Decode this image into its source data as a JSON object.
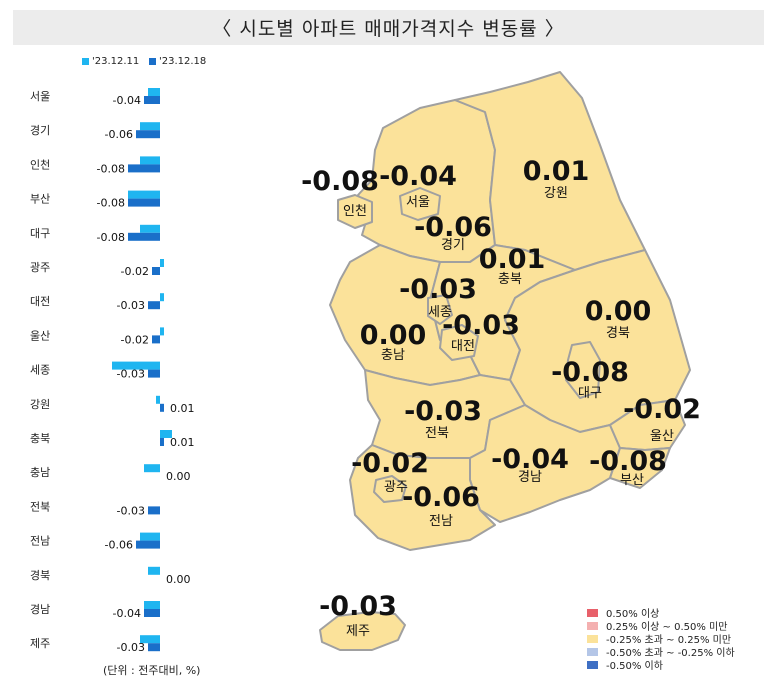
{
  "title": "〈  시도별 아파트 매매가격지수 변동률  〉",
  "unit_note": "(단위 : 전주대비, %)",
  "colors": {
    "prev": "#1fb5f0",
    "curr": "#1a6fc9",
    "map_fill": "#fbe29a",
    "map_stroke": "#a0a0a0"
  },
  "chart_data": {
    "type": "bar",
    "orientation": "horizontal",
    "categories": [
      "서울",
      "경기",
      "인천",
      "부산",
      "대구",
      "광주",
      "대전",
      "울산",
      "세종",
      "강원",
      "충북",
      "충남",
      "전북",
      "전남",
      "경북",
      "경남",
      "제주"
    ],
    "series": [
      {
        "name": "'23.12.11",
        "values": [
          -0.03,
          -0.05,
          -0.05,
          -0.08,
          -0.05,
          0.01,
          0.01,
          0.01,
          -0.12,
          -0.01,
          0.03,
          -0.04,
          0.0,
          -0.05,
          -0.03,
          -0.04,
          -0.05
        ]
      },
      {
        "name": "'23.12.18",
        "values": [
          -0.04,
          -0.06,
          -0.08,
          -0.08,
          -0.08,
          -0.02,
          -0.03,
          -0.02,
          -0.03,
          0.01,
          0.01,
          0.0,
          -0.03,
          -0.06,
          0.0,
          -0.04,
          -0.03
        ]
      }
    ],
    "data_labels": [
      "-0.04",
      "-0.06",
      "-0.08",
      "-0.08",
      "-0.08",
      "-0.02",
      "-0.03",
      "-0.02",
      "-0.03",
      "0.01",
      "0.01",
      "0.00",
      "-0.03",
      "-0.06",
      "0.00",
      "-0.04",
      "-0.03"
    ],
    "legend_position": "top"
  },
  "map": {
    "regions": [
      {
        "name": "인천",
        "value": "-0.08"
      },
      {
        "name": "서울",
        "value": "-0.04"
      },
      {
        "name": "강원",
        "value": "0.01"
      },
      {
        "name": "경기",
        "value": "-0.06"
      },
      {
        "name": "충북",
        "value": "0.01"
      },
      {
        "name": "세종",
        "value": "-0.03"
      },
      {
        "name": "대전",
        "value": "-0.03"
      },
      {
        "name": "충남",
        "value": "0.00"
      },
      {
        "name": "경북",
        "value": "0.00"
      },
      {
        "name": "대구",
        "value": "-0.08"
      },
      {
        "name": "울산",
        "value": "-0.02"
      },
      {
        "name": "전북",
        "value": "-0.03"
      },
      {
        "name": "경남",
        "value": "-0.04"
      },
      {
        "name": "부산",
        "value": "-0.08"
      },
      {
        "name": "광주",
        "value": "-0.02"
      },
      {
        "name": "전남",
        "value": "-0.06"
      },
      {
        "name": "제주",
        "value": "-0.03"
      }
    ],
    "legend": [
      {
        "label": "0.50% 이상",
        "color": "#e8606a"
      },
      {
        "label": "0.25% 이상 ~ 0.50% 미만",
        "color": "#f4b0b0"
      },
      {
        "label": "-0.25% 초과 ~ 0.25% 미만",
        "color": "#fbe29a"
      },
      {
        "label": "-0.50% 초과 ~ -0.25% 이하",
        "color": "#b4c6e7"
      },
      {
        "label": "-0.50% 이하",
        "color": "#3e6fc4"
      }
    ]
  }
}
